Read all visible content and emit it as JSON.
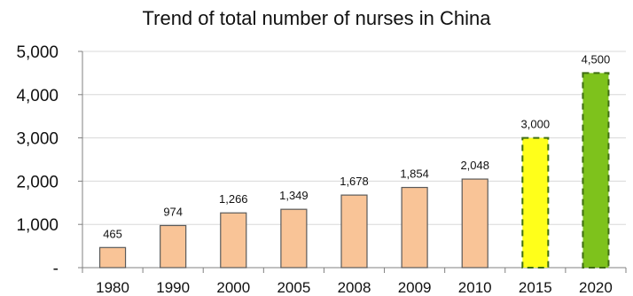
{
  "chart_data": {
    "type": "bar",
    "title": "Trend of total number of nurses in China",
    "xlabel": "",
    "ylabel": "",
    "categories": [
      "1980",
      "1990",
      "2000",
      "2005",
      "2008",
      "2009",
      "2010",
      "2015",
      "2020"
    ],
    "values": [
      465,
      974,
      1266,
      1349,
      1678,
      1854,
      2048,
      3000,
      4500
    ],
    "data_labels": [
      "465",
      "974",
      "1,266",
      "1,349",
      "1,678",
      "1,854",
      "2,048",
      "3,000",
      "4,500"
    ],
    "y_ticks": [
      0,
      1000,
      2000,
      3000,
      4000,
      5000
    ],
    "y_tick_labels": [
      "-",
      "1,000",
      "2,000",
      "3,000",
      "4,000",
      "5,000"
    ],
    "ylim": [
      0,
      5000
    ],
    "grid": true,
    "bar_styles": [
      "actual",
      "actual",
      "actual",
      "actual",
      "actual",
      "actual",
      "actual",
      "projected-2015",
      "projected-2020"
    ],
    "colors": {
      "actual_fill": "#F9C497",
      "actual_stroke": "#5A5A5A",
      "projected_2015_fill": "#FFFF1A",
      "projected_2020_fill": "#7EC21C",
      "projected_stroke": "#3F6E12",
      "grid": "#D8D8D8",
      "axis": "#808080",
      "text": "#111111"
    }
  }
}
